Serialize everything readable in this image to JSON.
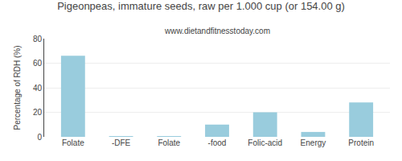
{
  "chart_data": {
    "type": "bar",
    "title": "Pigeonpeas, immature seeds, raw per 1.000 cup (or 154.00 g)",
    "subtitle": "www.dietandfitnesstoday.com",
    "ylabel": "Percentage of RDH (%)",
    "categories": [
      "Folate",
      "-DFE",
      "Folate",
      "-food",
      "Folic-acid",
      "Energy",
      "Protein"
    ],
    "values": [
      66,
      0.5,
      0.5,
      10,
      20,
      4,
      28
    ],
    "color": "#99CCDD",
    "ylim": [
      0,
      80
    ],
    "yticks": [
      0,
      20,
      40,
      60,
      80
    ],
    "grid": true
  }
}
